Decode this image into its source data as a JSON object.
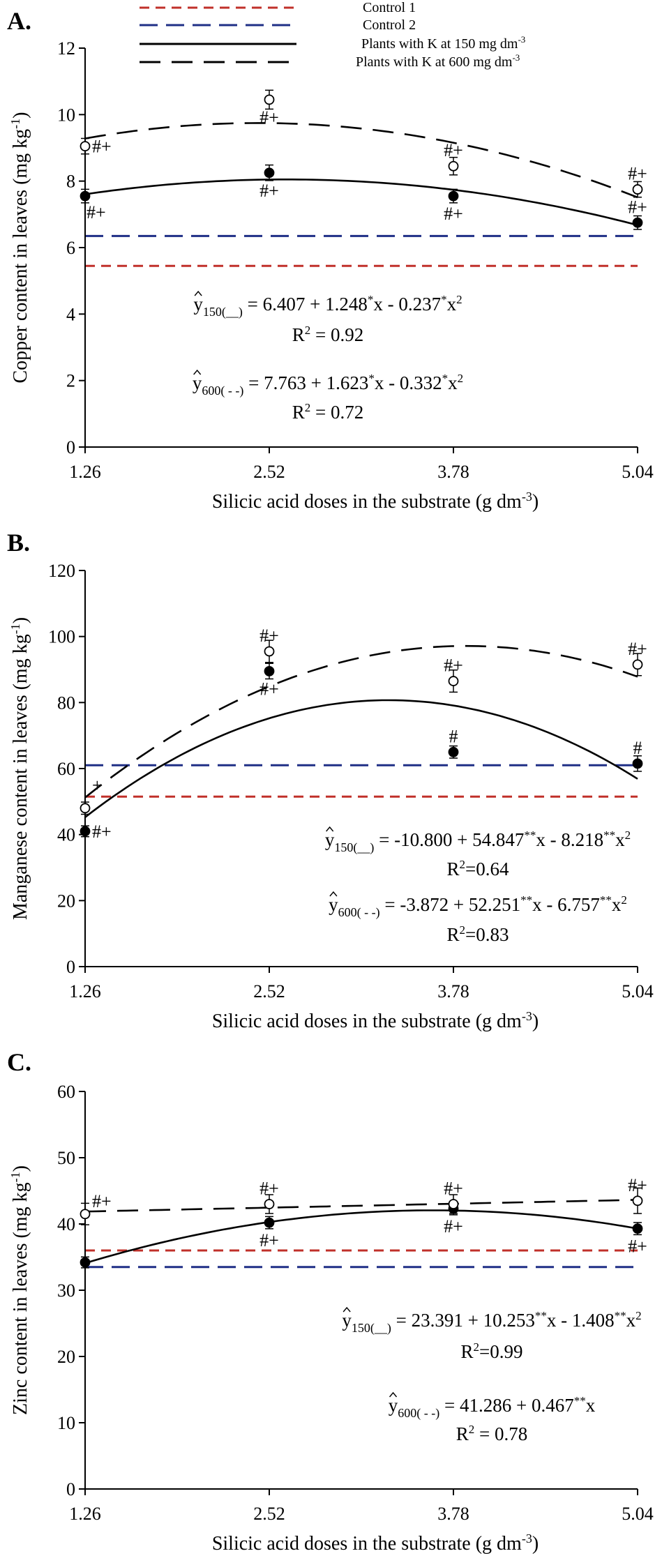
{
  "legend": {
    "entries": [
      {
        "label": "Control 1",
        "color": "#c0302a",
        "style": "short-dash"
      },
      {
        "label": "Control 2",
        "color": "#1f2f86",
        "style": "long-dash"
      },
      {
        "label": "Plants with K at 150 mg dm",
        "sup": "-3",
        "color": "#000000",
        "style": "solid"
      },
      {
        "label": "Plants with K at 600 mg dm",
        "sup": "-3",
        "color": "#000000",
        "style": "long-dash"
      }
    ]
  },
  "chart_data": [
    {
      "type": "scatter",
      "panel_label": "A.",
      "xlabel": "Silicic acid doses in the substrate (g dm",
      "xlabel_sup": "-3",
      "xlabel_tail": ")",
      "ylabel": "Copper content in leaves (mg kg",
      "ylabel_sup": "-1",
      "ylabel_tail": ")",
      "x_ticks": [
        "1.26",
        "2.52",
        "3.78",
        "5.04"
      ],
      "y_ticks": [
        "0",
        "2",
        "4",
        "6",
        "8",
        "10",
        "12"
      ],
      "xlim": [
        1.26,
        5.04
      ],
      "ylim": [
        0,
        12
      ],
      "controls": {
        "control1": 5.45,
        "control2": 6.35
      },
      "series": [
        {
          "name": "Plants with K at 150 mg dm-3",
          "marker": "filled",
          "x": [
            1.26,
            2.52,
            3.78,
            5.04
          ],
          "y": [
            7.55,
            8.25,
            7.55,
            6.75
          ],
          "err": [
            0.12,
            0.15,
            0.12,
            0.12
          ],
          "fit": {
            "a": 6.407,
            "b": 1.248,
            "c": -0.237
          }
        },
        {
          "name": "Plants with K at 600 mg dm-3",
          "marker": "open",
          "x": [
            1.26,
            2.52,
            3.78,
            5.04
          ],
          "y": [
            9.05,
            10.45,
            8.45,
            7.75
          ],
          "err": [
            0.15,
            0.2,
            0.18,
            0.15
          ],
          "fit": {
            "a": 7.763,
            "b": 1.623,
            "c": -0.332
          }
        }
      ],
      "annotations": [
        {
          "text": "#+",
          "x": 1.26,
          "y": 9.05,
          "pos": "right"
        },
        {
          "text": "#+",
          "x": 1.26,
          "y": 7.55,
          "pos": "below-right"
        },
        {
          "text": "#+",
          "x": 2.52,
          "y": 10.45,
          "pos": "below"
        },
        {
          "text": "#+",
          "x": 2.52,
          "y": 8.25,
          "pos": "below"
        },
        {
          "text": "#+",
          "x": 3.78,
          "y": 8.45,
          "pos": "above"
        },
        {
          "text": "#+",
          "x": 3.78,
          "y": 7.55,
          "pos": "below"
        },
        {
          "text": "#+",
          "x": 5.04,
          "y": 7.75,
          "pos": "above"
        },
        {
          "text": "#+",
          "x": 5.04,
          "y": 6.75,
          "pos": "above"
        }
      ],
      "equations": [
        {
          "lead": "y",
          "sub": "150(__)",
          "body": " = 6.407 + 1.248",
          "s1": "*",
          "m1": "x - 0.237",
          "s2": "*",
          "m2": "x",
          "s3": "2"
        },
        {
          "r2": "R",
          "r2sup": "2",
          "r2val": " = 0.92"
        },
        {
          "lead": "y",
          "sub": "600( - -)",
          "body": " = 7.763 + 1.623",
          "s1": "*",
          "m1": "x - 0.332",
          "s2": "*",
          "m2": "x",
          "s3": "2"
        },
        {
          "r2": "R",
          "r2sup": "2",
          "r2val": " = 0.72"
        }
      ]
    },
    {
      "type": "scatter",
      "panel_label": "B.",
      "xlabel": "Silicic acid doses in the substrate (g dm",
      "xlabel_sup": "-3",
      "xlabel_tail": ")",
      "ylabel": "Manganese content in leaves (mg kg",
      "ylabel_sup": "-1",
      "ylabel_tail": ")",
      "x_ticks": [
        "1.26",
        "2.52",
        "3.78",
        "5.04"
      ],
      "y_ticks": [
        "0",
        "20",
        "40",
        "60",
        "80",
        "100",
        "120"
      ],
      "xlim": [
        1.26,
        5.04
      ],
      "ylim": [
        0,
        120
      ],
      "controls": {
        "control1": 51.5,
        "control2": 61
      },
      "series": [
        {
          "name": "Plants with K at 150 mg dm-3",
          "marker": "filled",
          "x": [
            1.26,
            2.52,
            3.78,
            5.04
          ],
          "y": [
            41,
            89.5,
            65,
            61.5
          ],
          "err": [
            0.8,
            1.5,
            1.0,
            1.5
          ],
          "fit": {
            "a": -10.8,
            "b": 54.847,
            "c": -8.218
          }
        },
        {
          "name": "Plants with K at 600 mg dm-3",
          "marker": "open",
          "x": [
            1.26,
            2.52,
            3.78,
            5.04
          ],
          "y": [
            48,
            95.5,
            86.5,
            91.5
          ],
          "err": [
            1.0,
            2.5,
            2.5,
            2.5
          ],
          "fit": {
            "a": -3.872,
            "b": 52.251,
            "c": -6.757
          }
        }
      ],
      "annotations": [
        {
          "text": "+",
          "x": 1.26,
          "y": 55,
          "pos": "right"
        },
        {
          "text": "#+",
          "x": 1.26,
          "y": 41,
          "pos": "right"
        },
        {
          "text": "#+",
          "x": 2.52,
          "y": 95.5,
          "pos": "above"
        },
        {
          "text": "#+",
          "x": 2.52,
          "y": 89.5,
          "pos": "below"
        },
        {
          "text": "#+",
          "x": 3.78,
          "y": 86.5,
          "pos": "above"
        },
        {
          "text": "#",
          "x": 3.78,
          "y": 65,
          "pos": "above"
        },
        {
          "text": "#+",
          "x": 5.04,
          "y": 91.5,
          "pos": "above"
        },
        {
          "text": "#",
          "x": 5.04,
          "y": 61.5,
          "pos": "above"
        }
      ],
      "equations": [
        {
          "lead": "y",
          "sub": "150(__)",
          "body": " = -10.800 + 54.847",
          "s1": "**",
          "m1": "x - 8.218",
          "s2": "**",
          "m2": "x",
          "s3": "2"
        },
        {
          "r2": "R",
          "r2sup": "2",
          "r2val": "=0.64"
        },
        {
          "lead": "y",
          "sub": "600( - -)",
          "body": " = -3.872 + 52.251",
          "s1": "**",
          "m1": "x - 6.757",
          "s2": "**",
          "m2": "x",
          "s3": "2"
        },
        {
          "r2": "R",
          "r2sup": "2",
          "r2val": "=0.83"
        }
      ]
    },
    {
      "type": "scatter",
      "panel_label": "C.",
      "xlabel": "Silicic acid doses in the substrate (g dm",
      "xlabel_sup": "-3",
      "xlabel_tail": ")",
      "ylabel": "Zinc content in leaves (mg kg",
      "ylabel_sup": "-1",
      "ylabel_tail": ")",
      "x_ticks": [
        "1.26",
        "2.52",
        "3.78",
        "5.04"
      ],
      "y_ticks": [
        "0",
        "10",
        "20",
        "30",
        "40",
        "50",
        "60"
      ],
      "xlim": [
        1.26,
        5.04
      ],
      "ylim": [
        0,
        60
      ],
      "controls": {
        "control1": 36,
        "control2": 33.5
      },
      "series": [
        {
          "name": "Plants with K at 150 mg dm-3",
          "marker": "filled",
          "x": [
            1.26,
            2.52,
            3.78,
            5.04
          ],
          "y": [
            34.2,
            40.2,
            42.3,
            39.3
          ],
          "err": [
            0.4,
            0.5,
            0.5,
            0.5
          ],
          "fit": {
            "a": 23.391,
            "b": 10.253,
            "c": -1.408
          }
        },
        {
          "name": "Plants with K at 600 mg dm-3",
          "marker": "open",
          "x": [
            1.26,
            2.52,
            3.78,
            5.04
          ],
          "y": [
            41.5,
            43.0,
            43.0,
            43.5
          ],
          "err": [
            1.2,
            1.0,
            1.0,
            1.5
          ],
          "fit": {
            "a": 41.286,
            "b": 0.467,
            "c": 0
          }
        }
      ],
      "annotations": [
        {
          "text": "#+",
          "x": 1.26,
          "y": 43.5,
          "pos": "right"
        },
        {
          "text": "#+",
          "x": 2.52,
          "y": 43.0,
          "pos": "above"
        },
        {
          "text": "#+",
          "x": 2.52,
          "y": 40.2,
          "pos": "below"
        },
        {
          "text": "#+",
          "x": 3.78,
          "y": 43.0,
          "pos": "above"
        },
        {
          "text": "#+",
          "x": 3.78,
          "y": 42.3,
          "pos": "below"
        },
        {
          "text": "#+",
          "x": 5.04,
          "y": 43.5,
          "pos": "above"
        },
        {
          "text": "#+",
          "x": 5.04,
          "y": 39.3,
          "pos": "below"
        }
      ],
      "equations": [
        {
          "lead": "y",
          "sub": "150(__)",
          "body": " = 23.391 + 10.253",
          "s1": "**",
          "m1": "x - 1.408",
          "s2": "**",
          "m2": "x",
          "s3": "2"
        },
        {
          "r2": "R",
          "r2sup": "2",
          "r2val": "=0.99"
        },
        {
          "lead": "y",
          "sub": "600( - -)",
          "body": " = 41.286 + 0.467",
          "s1": "**",
          "m1": "x",
          "s2": "",
          "m2": "",
          "s3": ""
        },
        {
          "r2": "R",
          "r2sup": "2",
          "r2val": " = 0.78"
        }
      ]
    }
  ]
}
